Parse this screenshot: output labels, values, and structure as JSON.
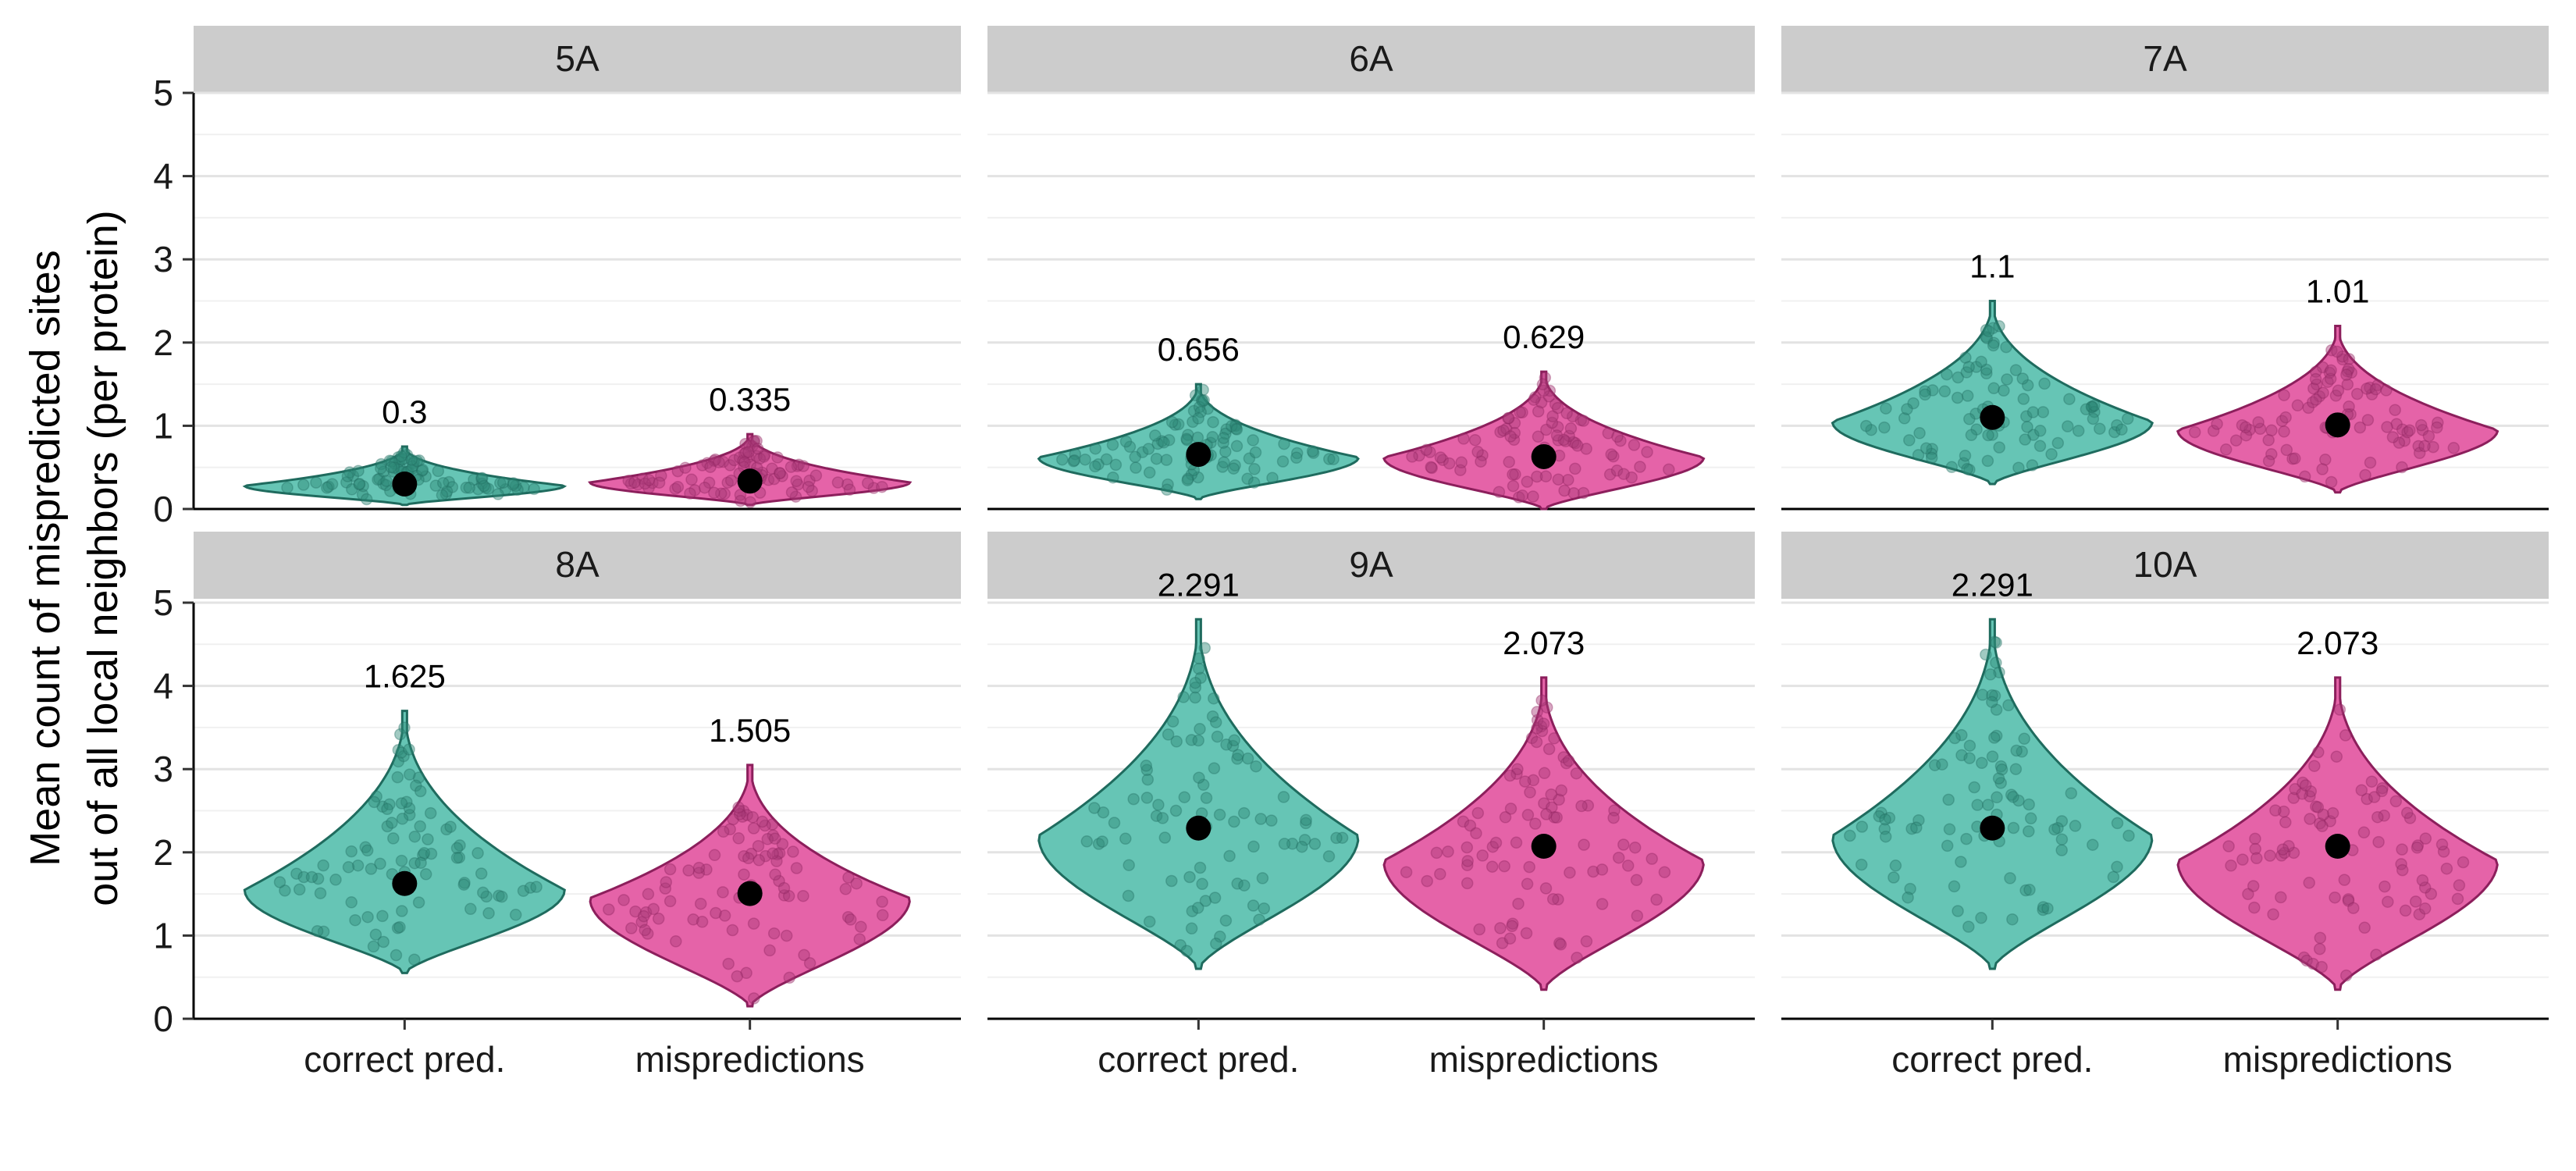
{
  "chart_data": {
    "type": "violin",
    "ylabel_lines": [
      "Mean count of mispredicted sites",
      "out of all local neighbors (per protein)"
    ],
    "xlabel": "",
    "ylim": [
      0,
      5
    ],
    "y_ticks": [
      "0",
      "1",
      "2",
      "3",
      "4",
      "5"
    ],
    "categories": [
      "correct pred.",
      "mispredictions"
    ],
    "grid": true,
    "colors": {
      "correct pred.": {
        "fill": "#66c5b5",
        "line": "#1f6b5e",
        "point": "#2f8a78"
      },
      "mispredictions": {
        "fill": "#e563a8",
        "line": "#8c1f5c",
        "point": "#a83a78"
      }
    },
    "panels": [
      {
        "facet": "5A",
        "groups": [
          {
            "category": "correct pred.",
            "mean": 0.3,
            "mean_label": "0.3",
            "min": 0.05,
            "max": 0.75,
            "mode": 0.28
          },
          {
            "category": "mispredictions",
            "mean": 0.335,
            "mean_label": "0.335",
            "min": 0.05,
            "max": 0.9,
            "mode": 0.32
          }
        ]
      },
      {
        "facet": "6A",
        "groups": [
          {
            "category": "correct pred.",
            "mean": 0.656,
            "mean_label": "0.656",
            "min": 0.12,
            "max": 1.5,
            "mode": 0.62
          },
          {
            "category": "mispredictions",
            "mean": 0.629,
            "mean_label": "0.629",
            "min": 0.0,
            "max": 1.65,
            "mode": 0.62
          }
        ]
      },
      {
        "facet": "7A",
        "groups": [
          {
            "category": "correct pred.",
            "mean": 1.1,
            "mean_label": "1.1",
            "min": 0.3,
            "max": 2.5,
            "mode": 1.05
          },
          {
            "category": "mispredictions",
            "mean": 1.01,
            "mean_label": "1.01",
            "min": 0.2,
            "max": 2.2,
            "mode": 0.95
          }
        ]
      },
      {
        "facet": "8A",
        "groups": [
          {
            "category": "correct pred.",
            "mean": 1.625,
            "mean_label": "1.625",
            "min": 0.55,
            "max": 3.7,
            "mode": 1.55
          },
          {
            "category": "mispredictions",
            "mean": 1.505,
            "mean_label": "1.505",
            "min": 0.15,
            "max": 3.05,
            "mode": 1.45
          }
        ]
      },
      {
        "facet": "9A",
        "groups": [
          {
            "category": "correct pred.",
            "mean": 2.291,
            "mean_label": "2.291",
            "min": 0.6,
            "max": 4.8,
            "mode": 2.2
          },
          {
            "category": "mispredictions",
            "mean": 2.073,
            "mean_label": "2.073",
            "min": 0.35,
            "max": 4.1,
            "mode": 1.9
          }
        ]
      },
      {
        "facet": "10A",
        "groups": [
          {
            "category": "correct pred.",
            "mean": 2.291,
            "mean_label": "2.291",
            "min": 0.6,
            "max": 4.8,
            "mode": 2.2
          },
          {
            "category": "mispredictions",
            "mean": 2.073,
            "mean_label": "2.073",
            "min": 0.35,
            "max": 4.1,
            "mode": 1.9
          }
        ]
      }
    ]
  }
}
